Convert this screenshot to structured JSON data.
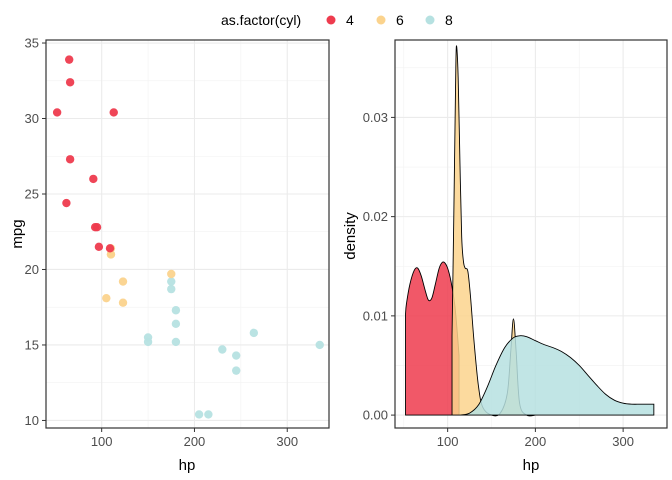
{
  "legend": {
    "title": "as.factor(cyl)",
    "entries": [
      {
        "label": "4",
        "color": "#EE3B4E"
      },
      {
        "label": "6",
        "color": "#FBD38D"
      },
      {
        "label": "8",
        "color": "#B6E1E1"
      }
    ]
  },
  "chart_data": [
    {
      "type": "scatter",
      "title": "",
      "xlabel": "hp",
      "ylabel": "mpg",
      "xlim": [
        40,
        345
      ],
      "ylim": [
        9.5,
        35.2
      ],
      "xticks": [
        100,
        200,
        300
      ],
      "yticks": [
        10,
        15,
        20,
        25,
        30,
        35
      ],
      "grid": true,
      "series": [
        {
          "name": "4",
          "color": "#EE3B4E",
          "points": [
            [
              93,
              22.8
            ],
            [
              62,
              24.4
            ],
            [
              95,
              22.8
            ],
            [
              66,
              32.4
            ],
            [
              52,
              30.4
            ],
            [
              65,
              33.9
            ],
            [
              97,
              21.5
            ],
            [
              66,
              27.3
            ],
            [
              91,
              26.0
            ],
            [
              113,
              30.4
            ],
            [
              109,
              21.4
            ]
          ]
        },
        {
          "name": "6",
          "color": "#FBD38D",
          "points": [
            [
              110,
              21.0
            ],
            [
              110,
              21.0
            ],
            [
              110,
              21.4
            ],
            [
              105,
              18.1
            ],
            [
              123,
              19.2
            ],
            [
              123,
              17.8
            ],
            [
              175,
              19.7
            ]
          ]
        },
        {
          "name": "8",
          "color": "#B6E1E1",
          "points": [
            [
              175,
              18.7
            ],
            [
              245,
              14.3
            ],
            [
              180,
              16.4
            ],
            [
              180,
              17.3
            ],
            [
              180,
              15.2
            ],
            [
              205,
              10.4
            ],
            [
              215,
              10.4
            ],
            [
              230,
              14.7
            ],
            [
              150,
              15.5
            ],
            [
              150,
              15.2
            ],
            [
              245,
              13.3
            ],
            [
              175,
              19.2
            ],
            [
              264,
              15.8
            ],
            [
              335,
              15.0
            ]
          ]
        }
      ]
    },
    {
      "type": "area",
      "title": "",
      "xlabel": "hp",
      "ylabel": "density",
      "xlim": [
        40,
        350
      ],
      "ylim": [
        -0.0013,
        0.0378
      ],
      "xticks": [
        100,
        200,
        300
      ],
      "yticks": [
        0.0,
        0.01,
        0.02,
        0.03
      ],
      "ytick_labels": [
        "0.00",
        "0.01",
        "0.02",
        "0.03"
      ],
      "grid": true,
      "series": [
        {
          "name": "4",
          "color": "#EE3B4E",
          "x": [
            52,
            53,
            57,
            62,
            66,
            70,
            74,
            78,
            82,
            86,
            90,
            93,
            96,
            100,
            104,
            108,
            111,
            113
          ],
          "y": [
            0.0102,
            0.0112,
            0.0132,
            0.0146,
            0.0148,
            0.014,
            0.0127,
            0.0116,
            0.0118,
            0.0132,
            0.0147,
            0.0153,
            0.0154,
            0.0148,
            0.0134,
            0.0112,
            0.0083,
            0.006
          ]
        },
        {
          "name": "6",
          "color": "#FBD38D",
          "x": [
            105,
            107,
            109,
            110,
            112,
            114,
            116,
            118,
            120,
            123,
            126,
            130,
            135,
            140,
            150,
            160,
            168,
            172,
            175,
            178,
            182,
            190,
            200
          ],
          "y": [
            0.008,
            0.02,
            0.033,
            0.0372,
            0.034,
            0.0255,
            0.018,
            0.0155,
            0.0148,
            0.0145,
            0.012,
            0.0075,
            0.003,
            0.0008,
            0.0,
            0.0002,
            0.0022,
            0.0065,
            0.0097,
            0.0065,
            0.0012,
            0.0,
            0.0
          ]
        },
        {
          "name": "8",
          "color": "#B6E1E1",
          "x": [
            115,
            125,
            135,
            145,
            155,
            165,
            175,
            183,
            190,
            200,
            210,
            220,
            230,
            240,
            250,
            260,
            270,
            280,
            290,
            300,
            310,
            320,
            335
          ],
          "y": [
            0.0,
            0.0002,
            0.001,
            0.0028,
            0.005,
            0.0068,
            0.0078,
            0.008,
            0.0079,
            0.0075,
            0.0071,
            0.0068,
            0.0064,
            0.0058,
            0.005,
            0.004,
            0.003,
            0.0021,
            0.0015,
            0.0012,
            0.0011,
            0.0011,
            0.0011
          ]
        }
      ]
    }
  ]
}
